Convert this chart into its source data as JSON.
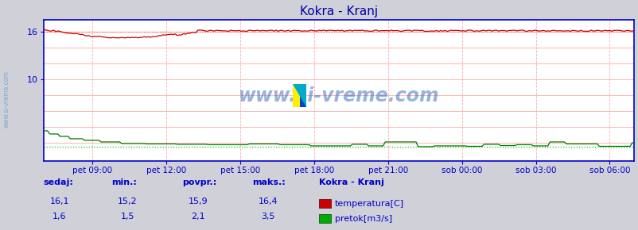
{
  "title": "Kokra - Kranj",
  "bg_color": "#d0d0d8",
  "plot_bg_color": "#ffffff",
  "x_labels": [
    "pet 09:00",
    "pet 12:00",
    "pet 15:00",
    "pet 18:00",
    "pet 21:00",
    "sob 00:00",
    "sob 03:00",
    "sob 06:00"
  ],
  "x_ticks_norm": [
    0.0833,
    0.2083,
    0.3333,
    0.4583,
    0.5833,
    0.7083,
    0.8333,
    0.9583
  ],
  "ylim": [
    -0.3,
    17.5
  ],
  "temp_color": "#cc0000",
  "flow_color": "#007700",
  "temp_dotted_color": "#ff5555",
  "flow_dotted_color": "#00cc00",
  "axis_color": "#0000cc",
  "watermark_color": "#3366bb",
  "title_color": "#0000aa",
  "label_color": "#0000cc",
  "sidebar_text_color": "#0000cc",
  "n_points": 288,
  "temp_cur": "16,1",
  "temp_min": "15,2",
  "temp_avg": "15,9",
  "temp_max": "16,4",
  "flow_cur": "1,6",
  "flow_min": "1,5",
  "flow_avg": "2,1",
  "flow_max": "3,5",
  "legend_title": "Kokra - Kranj",
  "legend_temp": "temperatura[C]",
  "legend_flow": "pretok[m3/s]",
  "header_sedaj": "sedaj:",
  "header_min": "min.:",
  "header_povpr": "povpr.:",
  "header_maks": "maks.:"
}
